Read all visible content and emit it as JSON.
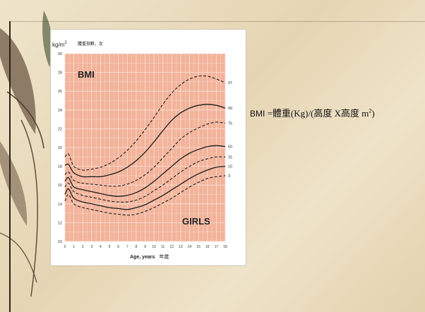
{
  "slide": {
    "formula_lhs": "BMI",
    "formula_rhs": "=體重(Kg)/(高度 X高度 m",
    "formula_sup": "2",
    "formula_close": ")"
  },
  "chart_data": {
    "type": "line",
    "chart_title": "BMI",
    "y_header": "kg/m",
    "y_header_sup": "2",
    "y_header_cn": "體重指數，女",
    "group_label": "GIRLS",
    "xlabel": "Age, years",
    "xlabel_cn": "年歲",
    "xlim": [
      0,
      18
    ],
    "ylim": [
      10,
      30
    ],
    "y_ticks": [
      10,
      12,
      14,
      16,
      18,
      20,
      22,
      24,
      26,
      28,
      30
    ],
    "x_ticks": [
      0,
      1,
      2,
      3,
      4,
      5,
      6,
      7,
      8,
      9,
      10,
      11,
      12,
      13,
      14,
      15,
      16,
      17,
      18
    ],
    "grid": true,
    "colors": {
      "plot_bg": "#f2b39a",
      "grid": "#fbe3d8",
      "curve": "#1a1a1a"
    },
    "series": [
      {
        "name": "97",
        "style": "dashed",
        "x": [
          0,
          0.4,
          1,
          2,
          3,
          4,
          5,
          6,
          7,
          8,
          9,
          10,
          11,
          12,
          13,
          14,
          15,
          16,
          17,
          18
        ],
        "y": [
          19.0,
          19.3,
          18.0,
          17.6,
          17.7,
          17.9,
          18.3,
          18.9,
          19.7,
          20.7,
          21.9,
          23.2,
          24.6,
          25.8,
          26.7,
          27.3,
          27.6,
          27.6,
          27.3,
          26.9
        ]
      },
      {
        "name": "90",
        "style": "solid",
        "x": [
          0,
          0.4,
          1,
          2,
          3,
          4,
          5,
          6,
          7,
          8,
          9,
          10,
          11,
          12,
          13,
          14,
          15,
          16,
          17,
          18
        ],
        "y": [
          18.1,
          18.2,
          17.3,
          16.9,
          16.9,
          16.9,
          17.1,
          17.4,
          17.9,
          18.6,
          19.5,
          20.6,
          21.8,
          22.9,
          23.7,
          24.2,
          24.5,
          24.6,
          24.5,
          24.2
        ]
      },
      {
        "name": "75",
        "style": "dashed",
        "x": [
          0,
          0.4,
          1,
          2,
          3,
          4,
          5,
          6,
          7,
          8,
          9,
          10,
          11,
          12,
          13,
          14,
          15,
          16,
          17,
          18
        ],
        "y": [
          17.1,
          17.4,
          16.5,
          16.2,
          16.1,
          16.0,
          15.9,
          15.9,
          16.1,
          16.5,
          17.1,
          17.9,
          18.9,
          19.9,
          20.9,
          21.6,
          22.1,
          22.5,
          22.7,
          22.6
        ]
      },
      {
        "name": "50",
        "style": "solid",
        "x": [
          0,
          0.4,
          1,
          2,
          3,
          4,
          5,
          6,
          7,
          8,
          9,
          10,
          11,
          12,
          13,
          14,
          15,
          16,
          17,
          18
        ],
        "y": [
          16.4,
          16.8,
          15.8,
          15.5,
          15.3,
          15.1,
          14.9,
          14.8,
          14.9,
          15.2,
          15.7,
          16.4,
          17.2,
          18.0,
          18.8,
          19.4,
          19.8,
          20.1,
          20.2,
          20.1
        ]
      },
      {
        "name": "25",
        "style": "dashed",
        "x": [
          0,
          0.4,
          1,
          2,
          3,
          4,
          5,
          6,
          7,
          8,
          9,
          10,
          11,
          12,
          13,
          14,
          15,
          16,
          17,
          18
        ],
        "y": [
          15.8,
          16.2,
          15.3,
          14.9,
          14.7,
          14.5,
          14.3,
          14.2,
          14.2,
          14.4,
          14.8,
          15.4,
          16.0,
          16.7,
          17.4,
          18.0,
          18.5,
          18.8,
          19.0,
          19.0
        ]
      },
      {
        "name": "10",
        "style": "solid",
        "x": [
          0,
          0.4,
          1,
          2,
          3,
          4,
          5,
          6,
          7,
          8,
          9,
          10,
          11,
          12,
          13,
          14,
          15,
          16,
          17,
          18
        ],
        "y": [
          15.0,
          15.6,
          14.6,
          14.2,
          14.0,
          13.8,
          13.6,
          13.5,
          13.4,
          13.6,
          13.9,
          14.4,
          14.9,
          15.5,
          16.1,
          16.7,
          17.2,
          17.6,
          17.9,
          18.0
        ]
      },
      {
        "name": "3",
        "style": "dashed",
        "x": [
          0,
          0.4,
          1,
          2,
          3,
          4,
          5,
          6,
          7,
          8,
          9,
          10,
          11,
          12,
          13,
          14,
          15,
          16,
          17,
          18
        ],
        "y": [
          14.3,
          15.0,
          14.0,
          13.6,
          13.4,
          13.2,
          13.0,
          12.9,
          12.8,
          12.9,
          13.2,
          13.6,
          14.1,
          14.6,
          15.2,
          15.8,
          16.3,
          16.7,
          16.9,
          17.0
        ]
      }
    ]
  }
}
